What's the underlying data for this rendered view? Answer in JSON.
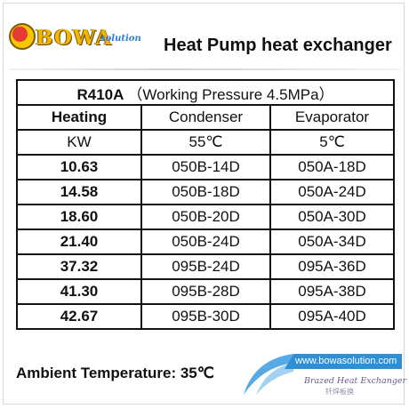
{
  "logo": {
    "brand": "BOWA",
    "sub": "solution"
  },
  "title": "Heat Pump heat exchanger",
  "table": {
    "refrigerant": "R410A",
    "pressure_note": "（Working Pressure 4.5MPa）",
    "header": [
      "Heating",
      "Condenser",
      "Evaporator"
    ],
    "units": [
      "KW",
      "55℃",
      "5℃"
    ],
    "rows": [
      [
        "10.63",
        "050B-14D",
        "050A-18D"
      ],
      [
        "14.58",
        "050B-18D",
        "050A-24D"
      ],
      [
        "18.60",
        "050B-20D",
        "050A-30D"
      ],
      [
        "21.40",
        "050B-24D",
        "050A-34D"
      ],
      [
        "37.32",
        "095B-24D",
        "095A-36D"
      ],
      [
        "41.30",
        "095B-28D",
        "095A-38D"
      ],
      [
        "42.67",
        "095B-30D",
        "095A-40D"
      ]
    ]
  },
  "ambient": "Ambient Temperature: 35℃",
  "footer": {
    "url": "www.bowasolution.com",
    "product_en": "Brazed Heat Exchanger",
    "product_cn": "钎焊板换"
  },
  "colors": {
    "logo_gold": "#f2b600",
    "accent_blue": "#2f8fd6",
    "text": "#111111"
  }
}
